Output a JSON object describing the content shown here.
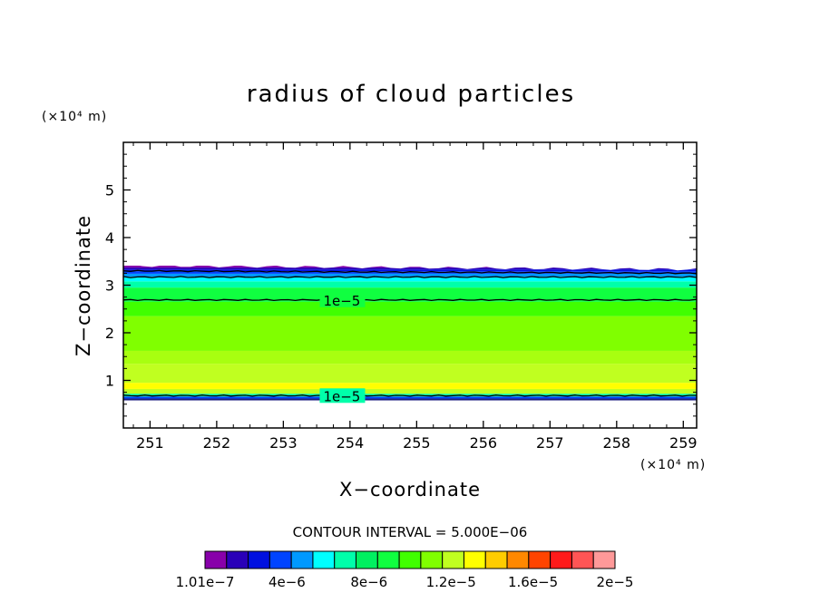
{
  "chart_data": {
    "type": "heatmap",
    "title": "radius of cloud particles",
    "xlabel": "X−coordinate",
    "ylabel": "Z−coordinate",
    "x_unit": "(×10⁴ m)",
    "y_unit": "(×10⁴ m)",
    "xlim": [
      250.6,
      259.2
    ],
    "ylim": [
      0,
      6
    ],
    "x_ticks": [
      "251",
      "252",
      "253",
      "254",
      "255",
      "256",
      "257",
      "258",
      "259"
    ],
    "y_ticks": [
      "1",
      "2",
      "3",
      "4",
      "5"
    ],
    "contour_interval_text": "CONTOUR INTERVAL = 5.000E−06",
    "contour_label": "1e−5",
    "colorbar": {
      "colors": [
        "#8800aa",
        "#2a00b8",
        "#0010e0",
        "#0044ff",
        "#0099ff",
        "#00ffff",
        "#00ffaa",
        "#00f060",
        "#10ff40",
        "#40ff00",
        "#80ff00",
        "#c0ff20",
        "#ffff00",
        "#ffcc00",
        "#ff8800",
        "#ff4400",
        "#ff1a1a",
        "#ff5555",
        "#ff9999"
      ],
      "labels": [
        "1.01e−7",
        "4e−6",
        "8e−6",
        "1.2e−5",
        "1.6e−5",
        "2e−5"
      ]
    },
    "layers": [
      {
        "z0": 0.58,
        "z1": 0.62,
        "color": "#1a1a80"
      },
      {
        "z0": 0.62,
        "z1": 0.66,
        "color": "#0044ff"
      },
      {
        "z0": 0.66,
        "z1": 0.72,
        "color": "#00ffaa"
      },
      {
        "z0": 0.72,
        "z1": 0.82,
        "color": "#c0ff20"
      },
      {
        "z0": 0.82,
        "z1": 0.95,
        "color": "#ffff00"
      },
      {
        "z0": 0.95,
        "z1": 1.35,
        "color": "#c0ff20"
      },
      {
        "z0": 1.35,
        "z1": 1.62,
        "color": "#a8ff10"
      },
      {
        "z0": 1.62,
        "z1": 2.35,
        "color": "#80ff00"
      },
      {
        "z0": 2.35,
        "z1": 2.65,
        "color": "#40ff00"
      },
      {
        "z0": 2.65,
        "z1": 2.95,
        "color": "#10ff40"
      },
      {
        "z0": 2.95,
        "z1": 3.08,
        "color": "#00ffaa"
      },
      {
        "z0": 3.08,
        "z1": 3.18,
        "color": "#00ffff"
      },
      {
        "z0": 3.18,
        "z1": 3.24,
        "color": "#0099ff"
      },
      {
        "z0": 3.24,
        "z1": 3.29,
        "color": "#0044ff"
      },
      {
        "z0": 3.29,
        "z1": 3.33,
        "color": "#0010e0"
      },
      {
        "z0": 3.33,
        "z1": 3.37,
        "color": "#2a00b8"
      },
      {
        "z0": 3.37,
        "z1": 3.41,
        "color": "#8800aa"
      }
    ],
    "contours": [
      {
        "z": 2.69,
        "value": "1e−5",
        "label_x": 253.6
      },
      {
        "z": 0.68,
        "value": "1e−5",
        "label_x": 253.6
      },
      {
        "z": 3.17,
        "value": ""
      },
      {
        "z": 3.3,
        "value": ""
      }
    ]
  }
}
